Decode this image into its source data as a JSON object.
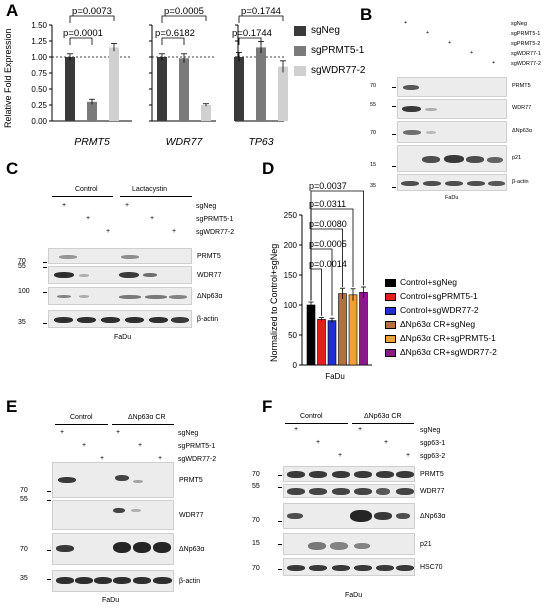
{
  "panels": {
    "a": {
      "label": "A",
      "y_axis_title": "Relative Fold Expression",
      "y_ticks": [
        "0.00",
        "0.25",
        "0.50",
        "0.75",
        "1.00",
        "1.25",
        "1.50"
      ],
      "legend": [
        "sgNeg",
        "sgPRMT5-1",
        "sgWDR77-2"
      ],
      "genes": [
        "PRMT5",
        "WDR77",
        "TP63"
      ],
      "p_top": [
        "p=0.0073",
        "p=0.0005",
        "p=0.1744"
      ],
      "p_bottom": [
        "p=0.0001",
        "p=0.6182",
        "p=0.1744"
      ]
    },
    "b": {
      "label": "B",
      "conditions": [
        "sgNeg",
        "sgPRMT5-1",
        "sgPRMT5-2",
        "sgWDR77-1",
        "sgWDR77-2"
      ],
      "plus": "+",
      "mw": [
        "70",
        "55",
        "70",
        "15",
        "35"
      ],
      "proteins": [
        "PRMT5",
        "WDR77",
        "ΔNp63α",
        "p21",
        "β-actin"
      ],
      "cell": "FaDu"
    },
    "c": {
      "label": "C",
      "groups": [
        "Control",
        "Lactacystin"
      ],
      "conditions": [
        "sgNeg",
        "sgPRMT5-1",
        "sgWDR77-2"
      ],
      "plus": "+",
      "mw": [
        "70",
        "55",
        "100",
        "35"
      ],
      "proteins": [
        "PRMT5",
        "WDR77",
        "ΔNp63α",
        "β-actin"
      ],
      "cell": "FaDu"
    },
    "d": {
      "label": "D",
      "y_axis_title": "Normalized to Control+sgNeg",
      "y_ticks": [
        "0",
        "50",
        "100",
        "150",
        "200",
        "250"
      ],
      "x_label": "FaDu",
      "p_values": [
        "p=0.0037",
        "p=0.0311",
        "p=0.0080",
        "p=0.0005",
        "p=0.0014"
      ],
      "legend": [
        "Control+sgNeg",
        "Control+sgPRMT5-1",
        "Control+sgWDR77-2",
        "ΔNp63α CR+sgNeg",
        "ΔNp63α CR+sgPRMT5-1",
        "ΔNp63α CR+sgWDR77-2"
      ]
    },
    "e": {
      "label": "E",
      "groups": [
        "Control",
        "ΔNp63α CR"
      ],
      "conditions": [
        "sgNeg",
        "sgPRMT5-1",
        "sgWDR77-2"
      ],
      "plus": "+",
      "mw": [
        "70",
        "55",
        "70",
        "35"
      ],
      "proteins": [
        "PRMT5",
        "WDR77",
        "ΔNp63α",
        "β-actin"
      ],
      "cell": "FaDu"
    },
    "f": {
      "label": "F",
      "groups": [
        "Control",
        "ΔNp63α CR"
      ],
      "conditions": [
        "sgNeg",
        "sgp63-1",
        "sgp63-2"
      ],
      "plus": "+",
      "mw": [
        "70",
        "55",
        "70",
        "15",
        "70"
      ],
      "proteins": [
        "PRMT5",
        "WDR77",
        "ΔNp63α",
        "p21",
        "HSC70"
      ],
      "cell": "FaDu"
    }
  },
  "colors": {
    "sgNeg": "#3a3a3a",
    "sgPRMT5": "#7a7a7a",
    "sgWDR77": "#d0d0d0",
    "d_series": [
      "#000000",
      "#e02020",
      "#1f2fd0",
      "#b8703a",
      "#f0a030",
      "#8a1a8a"
    ]
  },
  "chart_data": [
    {
      "type": "bar",
      "title": "",
      "ylabel": "Relative Fold Expression",
      "ylim": [
        0,
        1.5
      ],
      "categories": [
        "PRMT5",
        "WDR77",
        "TP63"
      ],
      "series": [
        {
          "name": "sgNeg",
          "values": [
            1.0,
            1.0,
            1.0
          ]
        },
        {
          "name": "sgPRMT5-1",
          "values": [
            0.3,
            0.98,
            1.15
          ]
        },
        {
          "name": "sgWDR77-2",
          "values": [
            1.15,
            0.25,
            0.85
          ]
        }
      ],
      "errors": [
        [
          0.05,
          0.05,
          0.07
        ],
        [
          0.04,
          0.07,
          0.09
        ],
        [
          0.06,
          0.02,
          0.09
        ]
      ],
      "reference_line": 1.0,
      "legend": "right"
    },
    {
      "type": "bar",
      "title": "",
      "ylabel": "Normalized to Control+sgNeg",
      "xlabel": "FaDu",
      "ylim": [
        0,
        250
      ],
      "categories": [
        "Control+sgNeg",
        "Control+sgPRMT5-1",
        "Control+sgWDR77-2",
        "ΔNp63α CR+sgNeg",
        "ΔNp63α CR+sgPRMT5-1",
        "ΔNp63α CR+sgWDR77-2"
      ],
      "values": [
        100,
        76,
        74,
        119,
        117,
        121
      ],
      "errors": [
        5,
        3,
        4,
        9,
        10,
        9
      ],
      "legend": "right"
    }
  ]
}
